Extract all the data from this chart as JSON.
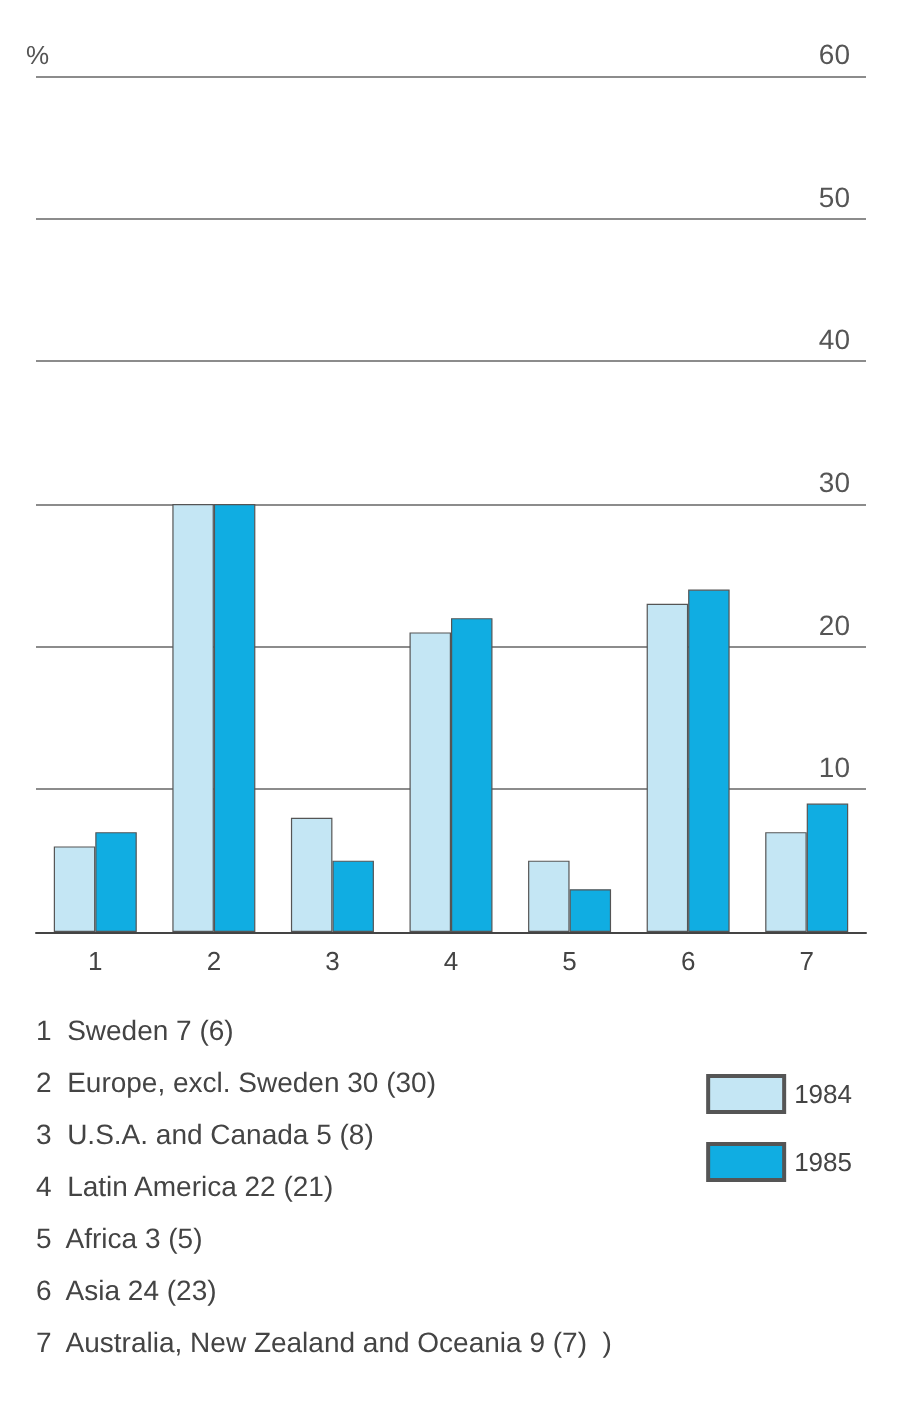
{
  "chart_data": {
    "type": "bar",
    "ylabel": "%",
    "categories": [
      "1",
      "2",
      "3",
      "4",
      "5",
      "6",
      "7"
    ],
    "series": [
      {
        "name": "1984",
        "color": "#c4e6f4",
        "values": [
          6,
          30,
          8,
          21,
          5,
          23,
          7
        ]
      },
      {
        "name": "1985",
        "color": "#10ade2",
        "values": [
          7,
          30,
          5,
          22,
          3,
          24,
          9
        ]
      }
    ],
    "ylim": [
      0,
      60
    ],
    "yticks": [
      {
        "value": 0,
        "label": null
      },
      10,
      20,
      30,
      40,
      50,
      60
    ],
    "grid": "y",
    "legend": "bottom right",
    "annotations": [
      "1  Sweden 7 (6)",
      "2  Europe, excl. Sweden 30 (30)",
      "3  U.S.A. and Canada 5 (8)",
      "4  Latin America 22 (21)",
      "5  Africa 3 (5)",
      "6  Asia 24 (23)",
      "7  Australia, New Zealand and Oceania 9 (7)  )"
    ]
  }
}
